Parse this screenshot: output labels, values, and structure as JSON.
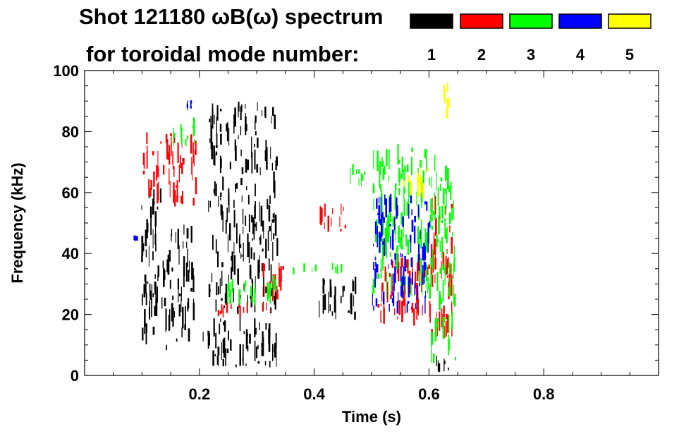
{
  "chart_data": {
    "type": "heatmap",
    "title": "Shot 121180 ωB(ω) spectrum",
    "subtitle": "for toroidal mode number:",
    "xlabel": "Time (s)",
    "ylabel": "Frequency (kHz)",
    "xlim": [
      0,
      1.0
    ],
    "ylim": [
      0,
      100
    ],
    "xticks": [
      0.2,
      0.4,
      0.6,
      0.8
    ],
    "xtick_labels": [
      "0.2",
      "0.4",
      "0.6",
      "0.8"
    ],
    "yticks": [
      0,
      20,
      40,
      60,
      80,
      100
    ],
    "ytick_labels": [
      "0",
      "20",
      "40",
      "60",
      "80",
      "100"
    ],
    "grid": false,
    "legend_position": "top-right",
    "legend": [
      {
        "mode": "1",
        "color": "#000000"
      },
      {
        "mode": "2",
        "color": "#ff0000"
      },
      {
        "mode": "3",
        "color": "#00ff00"
      },
      {
        "mode": "4",
        "color": "#0000ff"
      },
      {
        "mode": "5",
        "color": "#ffff00"
      }
    ],
    "series": [
      {
        "mode": "1",
        "color": "#000000",
        "regions": [
          {
            "t": [
              0.095,
              0.135
            ],
            "f": [
              10,
              62
            ]
          },
          {
            "t": [
              0.135,
              0.19
            ],
            "f": [
              8,
              50
            ]
          },
          {
            "t": [
              0.205,
              0.335
            ],
            "f": [
              2,
              20
            ]
          },
          {
            "t": [
              0.215,
              0.335
            ],
            "f": [
              20,
              90
            ]
          },
          {
            "t": [
              0.405,
              0.475
            ],
            "f": [
              18,
              33
            ]
          },
          {
            "t": [
              0.61,
              0.645
            ],
            "f": [
              1,
              7
            ]
          }
        ]
      },
      {
        "mode": "2",
        "color": "#ff0000",
        "regions": [
          {
            "t": [
              0.1,
              0.195
            ],
            "f": [
              55,
              80
            ]
          },
          {
            "t": [
              0.225,
              0.325
            ],
            "f": [
              19,
              24
            ]
          },
          {
            "t": [
              0.305,
              0.345
            ],
            "f": [
              22,
              37
            ]
          },
          {
            "t": [
              0.405,
              0.455
            ],
            "f": [
              47,
              57
            ]
          },
          {
            "t": [
              0.51,
              0.6
            ],
            "f": [
              16,
              40
            ]
          },
          {
            "t": [
              0.6,
              0.64
            ],
            "f": [
              12,
              62
            ]
          }
        ]
      },
      {
        "mode": "3",
        "color": "#00ff00",
        "regions": [
          {
            "t": [
              0.15,
              0.195
            ],
            "f": [
              75,
              85
            ]
          },
          {
            "t": [
              0.245,
              0.335
            ],
            "f": [
              23,
              33
            ]
          },
          {
            "t": [
              0.36,
              0.45
            ],
            "f": [
              33,
              37
            ]
          },
          {
            "t": [
              0.45,
              0.49
            ],
            "f": [
              62,
              70
            ]
          },
          {
            "t": [
              0.5,
              0.6
            ],
            "f": [
              25,
              76
            ]
          },
          {
            "t": [
              0.6,
              0.645
            ],
            "f": [
              4,
              74
            ]
          }
        ]
      },
      {
        "mode": "4",
        "color": "#0000ff",
        "regions": [
          {
            "t": [
              0.085,
              0.09
            ],
            "f": [
              44,
              46
            ]
          },
          {
            "t": [
              0.175,
              0.185
            ],
            "f": [
              87,
              91
            ]
          },
          {
            "t": [
              0.5,
              0.6
            ],
            "f": [
              20,
              60
            ]
          }
        ]
      },
      {
        "mode": "5",
        "color": "#ffff00",
        "regions": [
          {
            "t": [
              0.55,
              0.6
            ],
            "f": [
              58,
              68
            ]
          },
          {
            "t": [
              0.625,
              0.635
            ],
            "f": [
              84,
              96
            ]
          }
        ]
      }
    ]
  }
}
